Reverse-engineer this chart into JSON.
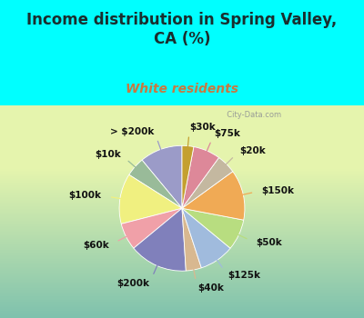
{
  "title": "Income distribution in Spring Valley,\nCA (%)",
  "subtitle": "White residents",
  "title_color": "#1a2e2e",
  "subtitle_color": "#c87941",
  "background_color": "#00ffff",
  "chart_bg_start": "#e8f5ee",
  "chart_bg_end": "#c8e8d8",
  "watermark": "  City-Data.com",
  "labels": [
    "> $200k",
    "$10k",
    "$100k",
    "$60k",
    "$200k",
    "$40k",
    "$125k",
    "$50k",
    "$150k",
    "$20k",
    "$75k",
    "$30k"
  ],
  "values": [
    11,
    5,
    13,
    7,
    15,
    4,
    9,
    8,
    13,
    5,
    7,
    3
  ],
  "colors": [
    "#9b9bc8",
    "#99bb99",
    "#f0f080",
    "#f0a0a8",
    "#8080bb",
    "#d8b890",
    "#a0bbdd",
    "#b8dd80",
    "#f0aa55",
    "#c4b8a0",
    "#dd8899",
    "#c4a030"
  ],
  "startangle": 90,
  "label_fontsize": 7.5,
  "title_fontsize": 12,
  "subtitle_fontsize": 10
}
